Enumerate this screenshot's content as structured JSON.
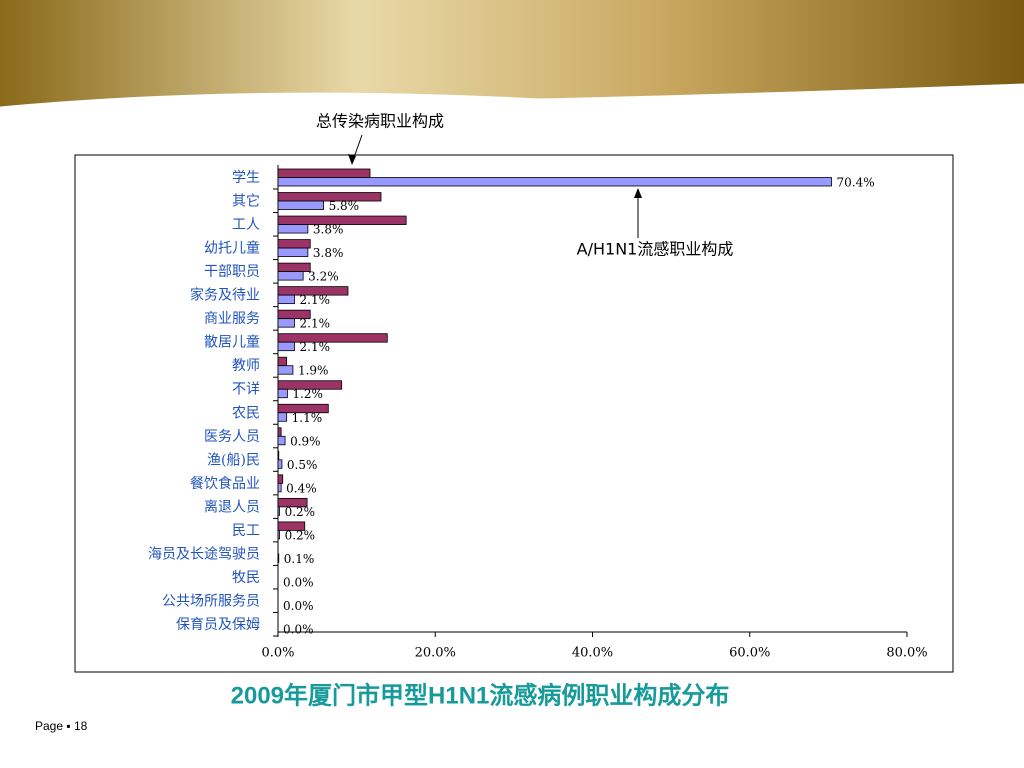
{
  "chart_data": {
    "type": "bar",
    "orientation": "horizontal",
    "title": "2009年厦门市甲型H1N1流感病例职业构成分布",
    "categories": [
      "学生",
      "其它",
      "工人",
      "幼托儿童",
      "干部职员",
      "家务及待业",
      "商业服务",
      "散居儿童",
      "教师",
      "不详",
      "农民",
      "医务人员",
      "渔(船)民",
      "餐饮食品业",
      "离退人员",
      "民工",
      "海员及长途驾驶员",
      "牧民",
      "公共场所服务员",
      "保育员及保姆"
    ],
    "series": [
      {
        "name": "总传染病职业构成",
        "color": "#9b3366",
        "values": [
          11.7,
          13.1,
          16.3,
          4.1,
          4.1,
          8.9,
          4.1,
          13.9,
          1.1,
          8.1,
          6.4,
          0.4,
          0.1,
          0.6,
          3.7,
          3.4,
          0,
          0,
          0,
          0
        ]
      },
      {
        "name": "A/H1N1流感职业构成",
        "color": "#9999ff",
        "values": [
          70.4,
          5.8,
          3.8,
          3.8,
          3.2,
          2.1,
          2.1,
          2.1,
          1.9,
          1.2,
          1.1,
          0.9,
          0.5,
          0.4,
          0.2,
          0.2,
          0.1,
          0,
          0,
          0
        ],
        "value_labels": [
          "70.4%",
          "5.8%",
          "3.8%",
          "3.8%",
          "3.2%",
          "2.1%",
          "2.1%",
          "2.1%",
          "1.9%",
          "1.2%",
          "1.1%",
          "0.9%",
          "0.5%",
          "0.4%",
          "0.2%",
          "0.2%",
          "0.1%",
          "0.0%",
          "0.0%",
          "0.0%"
        ]
      }
    ],
    "xlim": [
      0,
      80
    ],
    "xticks": [
      {
        "value": 0,
        "label": "0.0%"
      },
      {
        "value": 20,
        "label": "20.0%"
      },
      {
        "value": 40,
        "label": "40.0%"
      },
      {
        "value": 60,
        "label": "60.0%"
      },
      {
        "value": 80,
        "label": "80.0%"
      }
    ]
  },
  "footer": "Page ▪ 18"
}
